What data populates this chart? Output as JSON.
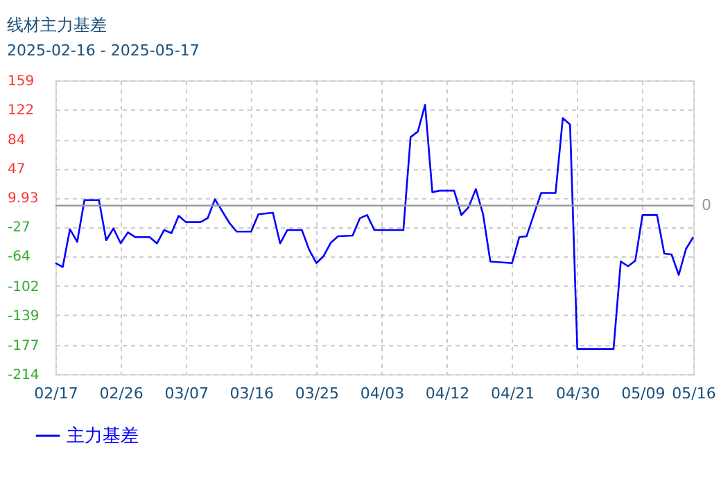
{
  "chart_data": {
    "type": "line",
    "title": "线材主力基差",
    "subtitle": "2025-02-16 - 2025-05-17",
    "x": [
      "2025-02-17",
      "2025-02-18",
      "2025-02-19",
      "2025-02-20",
      "2025-02-21",
      "2025-02-23",
      "2025-02-24",
      "2025-02-25",
      "2025-02-26",
      "2025-02-27",
      "2025-02-28",
      "2025-03-02",
      "2025-03-03",
      "2025-03-04",
      "2025-03-05",
      "2025-03-06",
      "2025-03-07",
      "2025-03-09",
      "2025-03-10",
      "2025-03-11",
      "2025-03-13",
      "2025-03-14",
      "2025-03-16",
      "2025-03-17",
      "2025-03-19",
      "2025-03-20",
      "2025-03-21",
      "2025-03-23",
      "2025-03-24",
      "2025-03-25",
      "2025-03-26",
      "2025-03-27",
      "2025-03-28",
      "2025-03-30",
      "2025-03-31",
      "2025-04-01",
      "2025-04-02",
      "2025-04-06",
      "2025-04-07",
      "2025-04-08",
      "2025-04-09",
      "2025-04-10",
      "2025-04-11",
      "2025-04-13",
      "2025-04-14",
      "2025-04-15",
      "2025-04-16",
      "2025-04-17",
      "2025-04-18",
      "2025-04-21",
      "2025-04-22",
      "2025-04-23",
      "2025-04-25",
      "2025-04-27",
      "2025-04-28",
      "2025-04-29",
      "2025-04-30",
      "2025-05-05",
      "2025-05-06",
      "2025-05-07",
      "2025-05-08",
      "2025-05-09",
      "2025-05-11",
      "2025-05-12",
      "2025-05-13",
      "2025-05-14",
      "2025-05-15",
      "2025-05-16"
    ],
    "series": [
      {
        "name": "主力基差",
        "color": "#0000ff",
        "values": [
          -73,
          -78,
          -30,
          -46,
          7,
          7,
          -44,
          -29,
          -48,
          -34,
          -40,
          -40,
          -48,
          -31,
          -35,
          -13,
          -21,
          -21,
          -16,
          8,
          -22,
          -33,
          -33,
          -11,
          -9,
          -48,
          -31,
          -31,
          -56,
          -73,
          -64,
          -47,
          -39,
          -38,
          -16,
          -12,
          -31,
          -31,
          87,
          94,
          128,
          17,
          19,
          19,
          -12,
          -2,
          21,
          -11,
          -71,
          -73,
          -40,
          -39,
          16,
          16,
          111,
          103,
          -182,
          -182,
          -71,
          -77,
          -70,
          -12,
          -12,
          -61,
          -62,
          -88,
          -55,
          -40
        ]
      }
    ],
    "xlim": [
      "2025-02-17",
      "2025-05-16"
    ],
    "xticks": [
      {
        "value": "2025-02-17",
        "label": "02/17"
      },
      {
        "value": "2025-02-26",
        "label": "02/26"
      },
      {
        "value": "2025-03-07",
        "label": "03/07"
      },
      {
        "value": "2025-03-16",
        "label": "03/16"
      },
      {
        "value": "2025-03-25",
        "label": "03/25"
      },
      {
        "value": "2025-04-03",
        "label": "04/03"
      },
      {
        "value": "2025-04-12",
        "label": "04/12"
      },
      {
        "value": "2025-04-21",
        "label": "04/21"
      },
      {
        "value": "2025-04-30",
        "label": "04/30"
      },
      {
        "value": "2025-05-09",
        "label": "05/09"
      },
      {
        "value": "2025-05-16",
        "label": "05/16"
      }
    ],
    "ylim": [
      -214,
      159
    ],
    "yticks": [
      159,
      122,
      84,
      47,
      9.93,
      -27,
      -64,
      -102,
      -139,
      -177,
      -214
    ],
    "ref_lines": [
      {
        "axis": "y",
        "value": 0,
        "label": "0",
        "color": "#999999"
      }
    ],
    "grid": true,
    "legend": "bottom left",
    "marker": "none",
    "line_style": "solid"
  }
}
